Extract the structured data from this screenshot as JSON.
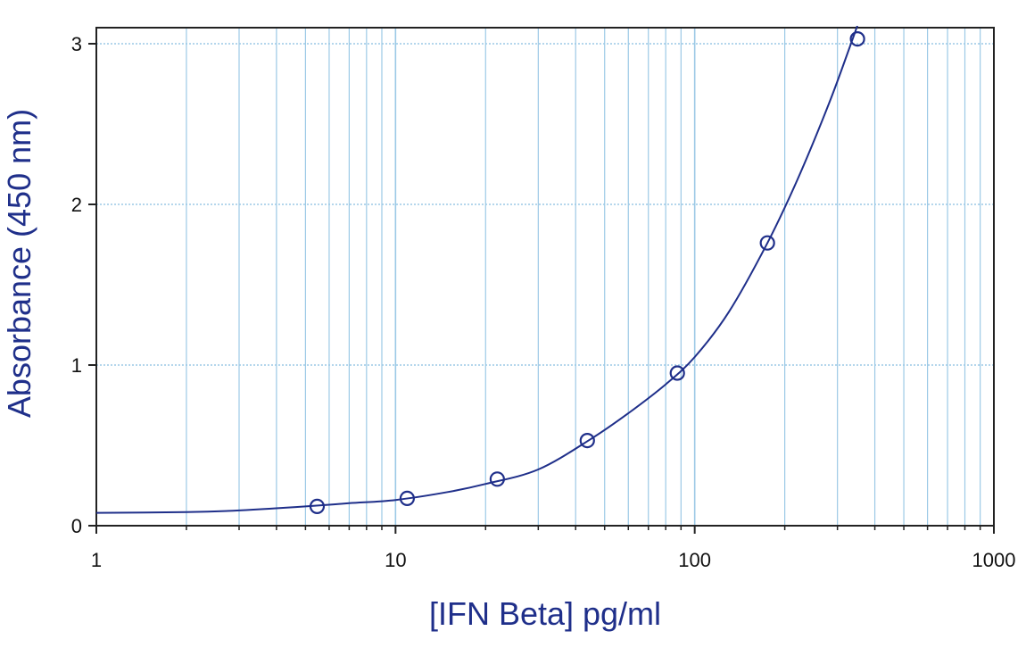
{
  "colors": {
    "grid": "#9cc9e6",
    "curve": "#1f2f8a",
    "axis": "#222222",
    "title": "#1f2f8a"
  },
  "chart_data": {
    "type": "scatter",
    "title": "",
    "xlabel": "[IFN Beta] pg/ml",
    "ylabel": "Absorbance (450 nm)",
    "x_scale": "log",
    "xlim": [
      1,
      1000
    ],
    "ylim": [
      0,
      3.1
    ],
    "x_ticks": [
      1,
      10,
      100,
      1000
    ],
    "x_tick_labels": [
      "1",
      "10",
      "100",
      "1000"
    ],
    "y_ticks": [
      0,
      1,
      2,
      3
    ],
    "y_tick_labels": [
      "0",
      "1",
      "2",
      "3"
    ],
    "grid": true,
    "legend": "none",
    "series": [
      {
        "x": [
          5.47,
          10.94,
          21.88,
          43.75,
          87.5,
          175,
          350
        ],
        "y": [
          0.12,
          0.17,
          0.29,
          0.53,
          0.95,
          1.76,
          3.03
        ]
      }
    ],
    "fit_curve": {
      "x": [
        1,
        2,
        3,
        5,
        7,
        10,
        15,
        20,
        30,
        45,
        60,
        80,
        100,
        130,
        175,
        220,
        280,
        330,
        360
      ],
      "y": [
        0.08,
        0.085,
        0.095,
        0.12,
        0.14,
        0.16,
        0.21,
        0.26,
        0.35,
        0.54,
        0.7,
        0.88,
        1.05,
        1.33,
        1.76,
        2.15,
        2.62,
        2.98,
        3.18
      ]
    }
  }
}
